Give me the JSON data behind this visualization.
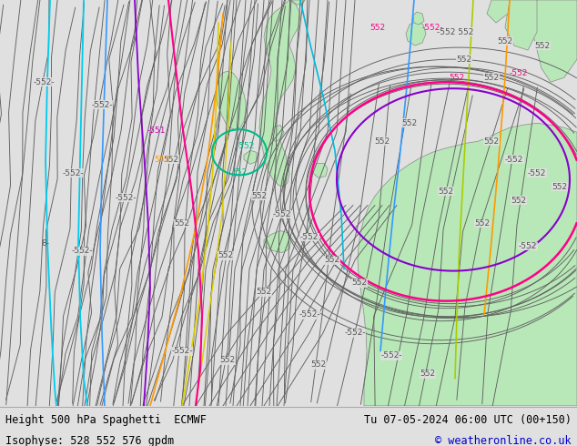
{
  "title_left": "Height 500 hPa Spaghetti  ECMWF",
  "title_right": "Tu 07-05-2024 06:00 UTC (00+150)",
  "subtitle_left": "Isophyse: 528 552 576 gpdm",
  "subtitle_right": "© weatheronline.co.uk",
  "bg_color": "#e0e0e0",
  "land_color": "#b8e8b8",
  "bottom_bar_color": "#ffffff",
  "fig_width": 6.34,
  "fig_height": 4.9,
  "dpi": 100
}
